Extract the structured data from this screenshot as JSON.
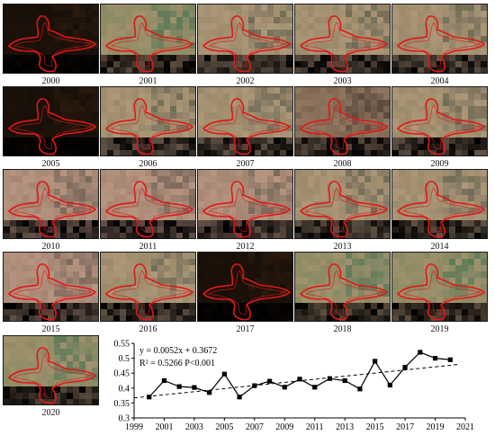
{
  "panels": [
    {
      "year": "2000",
      "tone": "dark"
    },
    {
      "year": "2001",
      "tone": "green"
    },
    {
      "year": "2002",
      "tone": "tan"
    },
    {
      "year": "2003",
      "tone": "tan"
    },
    {
      "year": "2004",
      "tone": "tan"
    },
    {
      "year": "2005",
      "tone": "dark"
    },
    {
      "year": "2006",
      "tone": "tan"
    },
    {
      "year": "2007",
      "tone": "tan"
    },
    {
      "year": "2008",
      "tone": "brown"
    },
    {
      "year": "2009",
      "tone": "tan"
    },
    {
      "year": "2010",
      "tone": "pink"
    },
    {
      "year": "2011",
      "tone": "pink"
    },
    {
      "year": "2012",
      "tone": "pink"
    },
    {
      "year": "2013",
      "tone": "tan"
    },
    {
      "year": "2014",
      "tone": "tan"
    },
    {
      "year": "2015",
      "tone": "pink"
    },
    {
      "year": "2016",
      "tone": "tan"
    },
    {
      "year": "2017",
      "tone": "dark"
    },
    {
      "year": "2018",
      "tone": "green"
    },
    {
      "year": "2019",
      "tone": "green"
    },
    {
      "year": "2020",
      "tone": "green"
    }
  ],
  "palette": {
    "dark": [
      "#1c120a",
      "#2a1a0d",
      "#120b06"
    ],
    "green": [
      "#8a8a62",
      "#5f7a57",
      "#b99b7b"
    ],
    "tan": [
      "#9a8a6a",
      "#6f6b55",
      "#c2a58a"
    ],
    "brown": [
      "#7c6550",
      "#5a4a3c",
      "#a98b73"
    ],
    "pink": [
      "#a58672",
      "#7c6a5c",
      "#c8a390"
    ],
    "outline": "#e01818"
  },
  "chart_data": {
    "type": "line",
    "x": [
      2000,
      2001,
      2002,
      2003,
      2004,
      2005,
      2006,
      2007,
      2008,
      2009,
      2010,
      2011,
      2012,
      2013,
      2014,
      2015,
      2016,
      2017,
      2018,
      2019,
      2020
    ],
    "series": [
      {
        "values": [
          0.37,
          0.425,
          0.405,
          0.402,
          0.385,
          0.447,
          0.37,
          0.408,
          0.423,
          0.403,
          0.43,
          0.403,
          0.432,
          0.425,
          0.397,
          0.49,
          0.41,
          0.47,
          0.52,
          0.5,
          0.495
        ]
      }
    ],
    "trend": {
      "slope": 0.0052,
      "intercept": 0.3672,
      "x_origin": 1999
    },
    "xlim": [
      1999,
      2021
    ],
    "ylim": [
      0.3,
      0.55
    ],
    "xticks": [
      "1999",
      "2001",
      "2003",
      "2005",
      "2007",
      "2009",
      "2011",
      "2013",
      "2015",
      "2017",
      "2019",
      "2021"
    ],
    "yticks": [
      "0.3",
      "0.35",
      "0.4",
      "0.45",
      "0.5",
      "0.55"
    ],
    "annotations": [
      "y = 0.0052x + 0.3672",
      "R² = 0.5266  P<0.001"
    ]
  }
}
